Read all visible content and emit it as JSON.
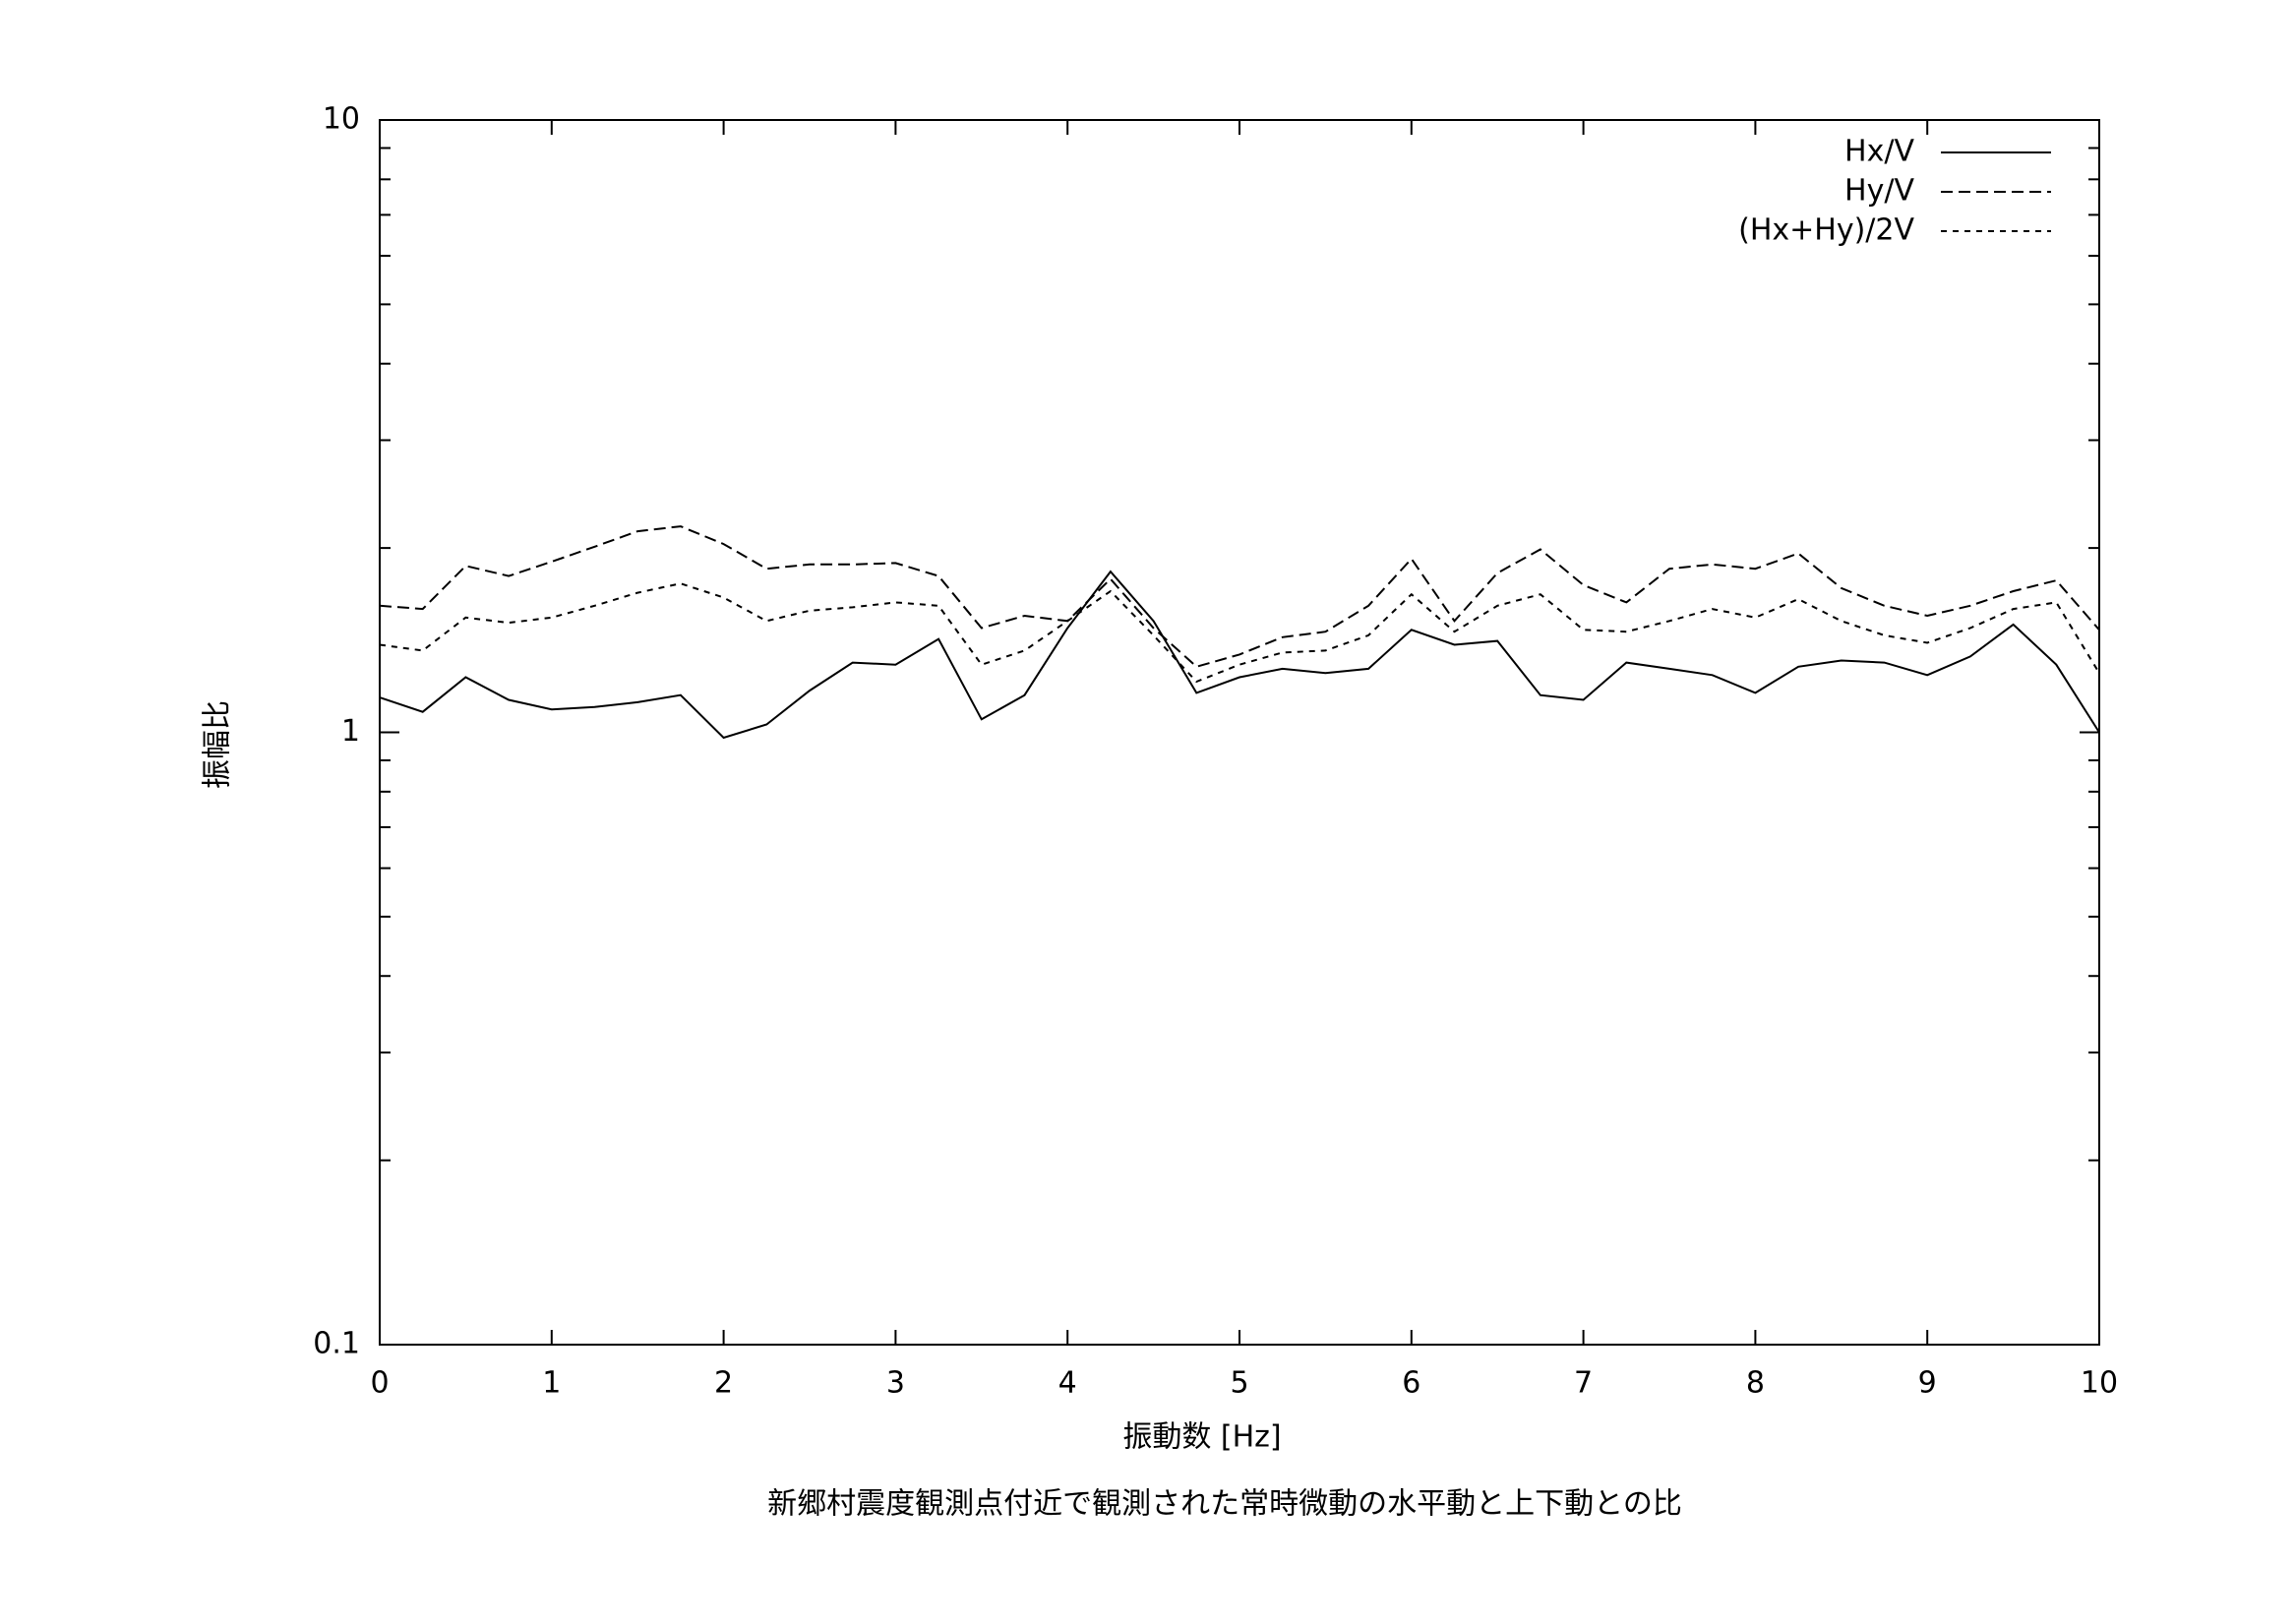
{
  "chart_data": {
    "type": "line",
    "xlabel": "振動数 [Hz]",
    "ylabel": "振幅比",
    "caption": "新郷村震度観測点付近で観測された常時微動の水平動と上下動との比",
    "x": [
      0,
      0.25,
      0.5,
      0.75,
      1,
      1.25,
      1.5,
      1.75,
      2,
      2.25,
      2.5,
      2.75,
      3,
      3.25,
      3.5,
      3.75,
      4,
      4.25,
      4.5,
      4.75,
      5,
      5.25,
      5.5,
      5.75,
      6,
      6.25,
      6.5,
      6.75,
      7,
      7.25,
      7.5,
      7.75,
      8,
      8.25,
      8.5,
      8.75,
      9,
      9.25,
      9.5,
      9.75,
      10
    ],
    "series": [
      {
        "name": "Hx/V",
        "color": "#000000",
        "dash": "solid",
        "values": [
          1.14,
          1.08,
          1.23,
          1.13,
          1.09,
          1.1,
          1.12,
          1.15,
          0.98,
          1.03,
          1.17,
          1.3,
          1.29,
          1.42,
          1.05,
          1.15,
          1.48,
          1.83,
          1.52,
          1.16,
          1.23,
          1.27,
          1.25,
          1.27,
          1.47,
          1.39,
          1.41,
          1.15,
          1.13,
          1.3,
          1.27,
          1.24,
          1.16,
          1.28,
          1.31,
          1.3,
          1.24,
          1.33,
          1.5,
          1.29,
          1.0
        ]
      },
      {
        "name": "Hy/V",
        "color": "#000000",
        "dash": "dashed",
        "values": [
          1.61,
          1.59,
          1.87,
          1.8,
          1.9,
          2.01,
          2.13,
          2.17,
          2.03,
          1.85,
          1.88,
          1.88,
          1.89,
          1.8,
          1.48,
          1.55,
          1.52,
          1.78,
          1.48,
          1.28,
          1.34,
          1.43,
          1.46,
          1.61,
          1.92,
          1.52,
          1.82,
          1.99,
          1.74,
          1.63,
          1.85,
          1.88,
          1.85,
          1.96,
          1.72,
          1.61,
          1.55,
          1.61,
          1.7,
          1.77,
          1.47
        ]
      },
      {
        "name": "(Hx+Hy)/2V",
        "color": "#000000",
        "dash": "dotted",
        "values": [
          1.39,
          1.36,
          1.54,
          1.51,
          1.54,
          1.61,
          1.69,
          1.75,
          1.66,
          1.52,
          1.58,
          1.6,
          1.63,
          1.61,
          1.29,
          1.36,
          1.52,
          1.7,
          1.44,
          1.21,
          1.29,
          1.35,
          1.36,
          1.44,
          1.68,
          1.46,
          1.61,
          1.68,
          1.47,
          1.46,
          1.52,
          1.59,
          1.54,
          1.65,
          1.52,
          1.44,
          1.4,
          1.48,
          1.59,
          1.63,
          1.25
        ]
      }
    ],
    "xlim": [
      0,
      10
    ],
    "xticks": [
      0,
      1,
      2,
      3,
      4,
      5,
      6,
      7,
      8,
      9,
      10
    ],
    "ylim": [
      0.1,
      10
    ],
    "yticks": [
      0.1,
      1,
      10
    ],
    "log_y": true,
    "legend": "upper right"
  }
}
